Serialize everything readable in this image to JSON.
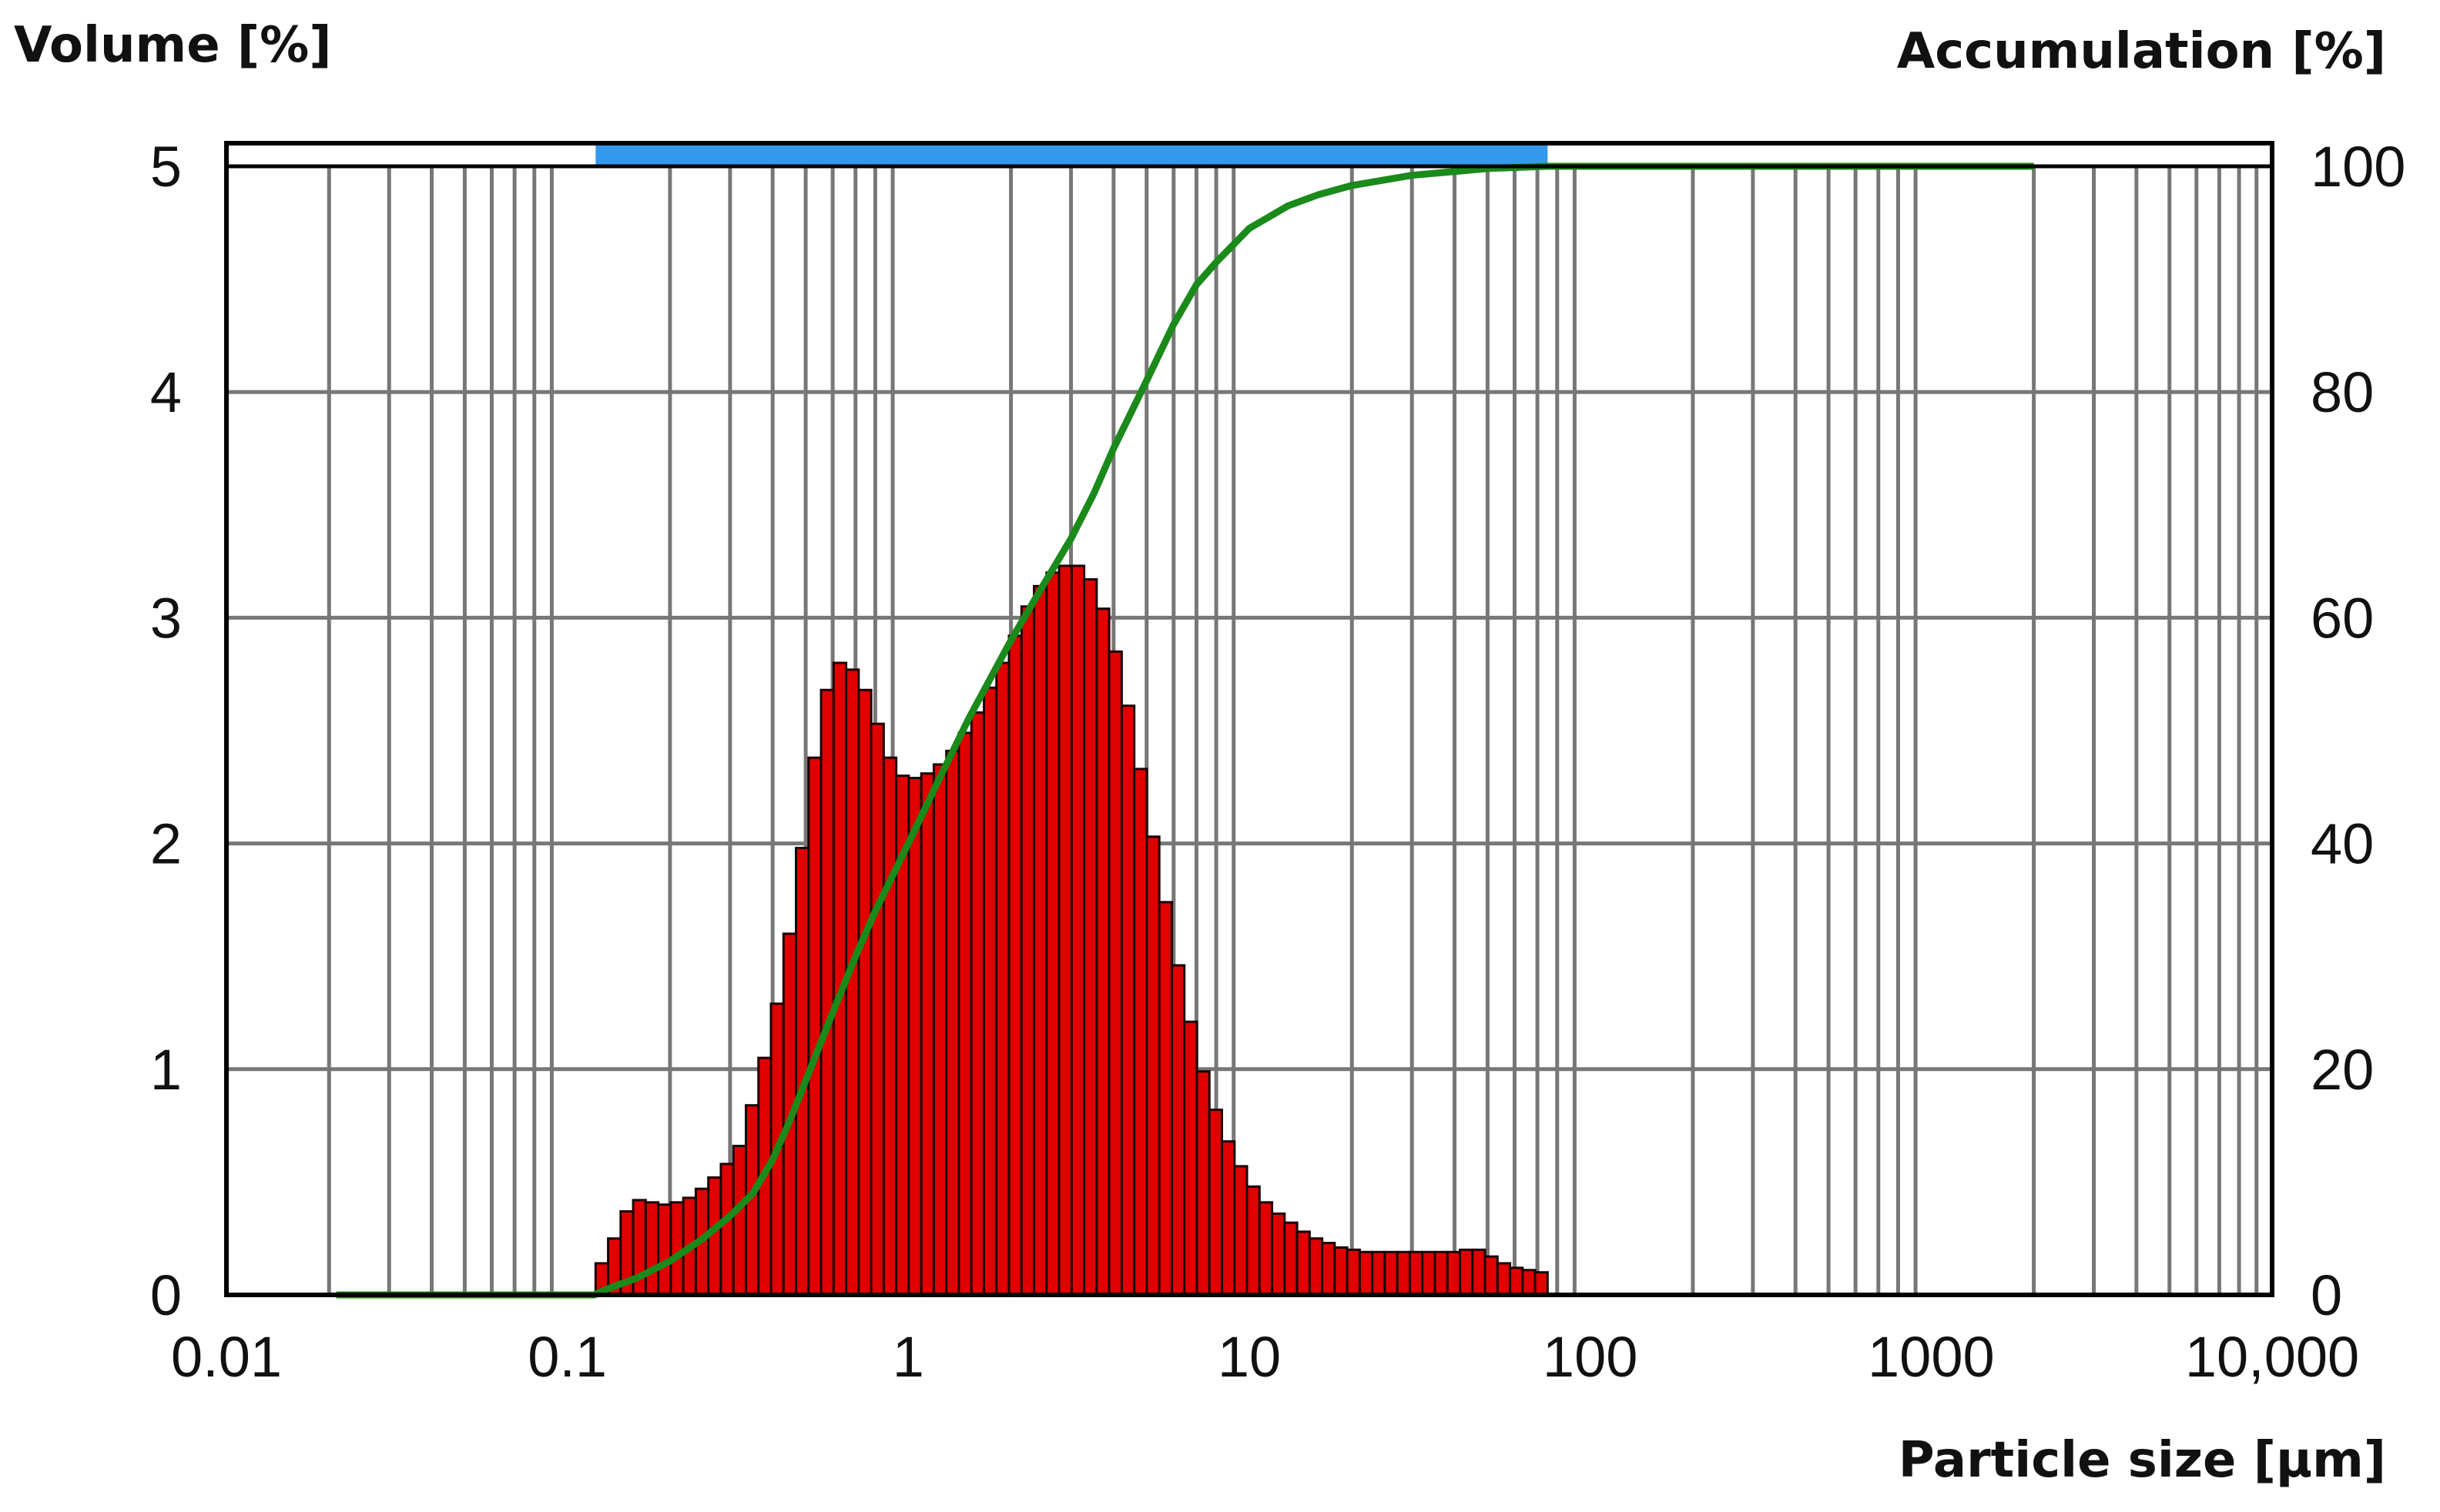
{
  "chart_data": {
    "type": "bar",
    "x_scale": "log",
    "xlim": [
      0.01,
      10000
    ],
    "ylim_left": [
      0,
      5
    ],
    "ylim_right": [
      0,
      100
    ],
    "grid": true,
    "ylabel_left": "Volume [%]",
    "ylabel_right": "Accumulation [%]",
    "xlabel": "Particle size [µm]",
    "x_ticks": [
      {
        "value": 0.01,
        "label": "0.01"
      },
      {
        "value": 0.1,
        "label": "0.1"
      },
      {
        "value": 1,
        "label": "1"
      },
      {
        "value": 10,
        "label": "10"
      },
      {
        "value": 100,
        "label": "100"
      },
      {
        "value": 1000,
        "label": "1000"
      },
      {
        "value": 10000,
        "label": "10,000"
      }
    ],
    "y_ticks_left": [
      {
        "value": 0,
        "label": "0"
      },
      {
        "value": 1,
        "label": "1"
      },
      {
        "value": 2,
        "label": "2"
      },
      {
        "value": 3,
        "label": "3"
      },
      {
        "value": 4,
        "label": "4"
      },
      {
        "value": 5,
        "label": "5"
      }
    ],
    "y_ticks_right": [
      {
        "value": 0,
        "label": "0"
      },
      {
        "value": 20,
        "label": "20"
      },
      {
        "value": 40,
        "label": "40"
      },
      {
        "value": 60,
        "label": "60"
      },
      {
        "value": 80,
        "label": "80"
      },
      {
        "value": 100,
        "label": "100"
      }
    ],
    "histogram": {
      "color": "#e00000",
      "x_start": 0.121,
      "x_end": 75,
      "values": [
        0.14,
        0.25,
        0.37,
        0.42,
        0.41,
        0.4,
        0.41,
        0.43,
        0.47,
        0.52,
        0.58,
        0.66,
        0.84,
        1.05,
        1.29,
        1.6,
        1.98,
        2.38,
        2.68,
        2.8,
        2.77,
        2.68,
        2.53,
        2.38,
        2.3,
        2.29,
        2.31,
        2.35,
        2.41,
        2.49,
        2.58,
        2.69,
        2.8,
        2.92,
        3.05,
        3.14,
        3.2,
        3.23,
        3.23,
        3.17,
        3.04,
        2.85,
        2.61,
        2.33,
        2.03,
        1.74,
        1.46,
        1.21,
        0.99,
        0.82,
        0.68,
        0.57,
        0.48,
        0.41,
        0.36,
        0.32,
        0.28,
        0.25,
        0.23,
        0.21,
        0.2,
        0.19,
        0.19,
        0.19,
        0.19,
        0.19,
        0.19,
        0.19,
        0.19,
        0.2,
        0.2,
        0.17,
        0.14,
        0.12,
        0.11,
        0.1
      ]
    },
    "accumulation": {
      "color": "#1a8a1a",
      "x": [
        0.021,
        0.05,
        0.12,
        0.13,
        0.16,
        0.2,
        0.25,
        0.3,
        0.35,
        0.4,
        0.45,
        0.5,
        0.6,
        0.7,
        0.8,
        1,
        1.2,
        1.5,
        2,
        2.5,
        3,
        3.5,
        4,
        5,
        6,
        7,
        8,
        10,
        13,
        16,
        20,
        30,
        50,
        75,
        2000
      ],
      "y": [
        0,
        0,
        0,
        0.5,
        1.5,
        3,
        5,
        7,
        9,
        12,
        15.5,
        19,
        25,
        30,
        34,
        40,
        45,
        51,
        58,
        63,
        67,
        71,
        75,
        81,
        86,
        89.5,
        91.5,
        94.5,
        96.5,
        97.5,
        98.3,
        99.2,
        99.8,
        100,
        100
      ]
    },
    "range_bar": {
      "x_start": 0.121,
      "x_end": 75,
      "color": "#3399ee"
    }
  }
}
